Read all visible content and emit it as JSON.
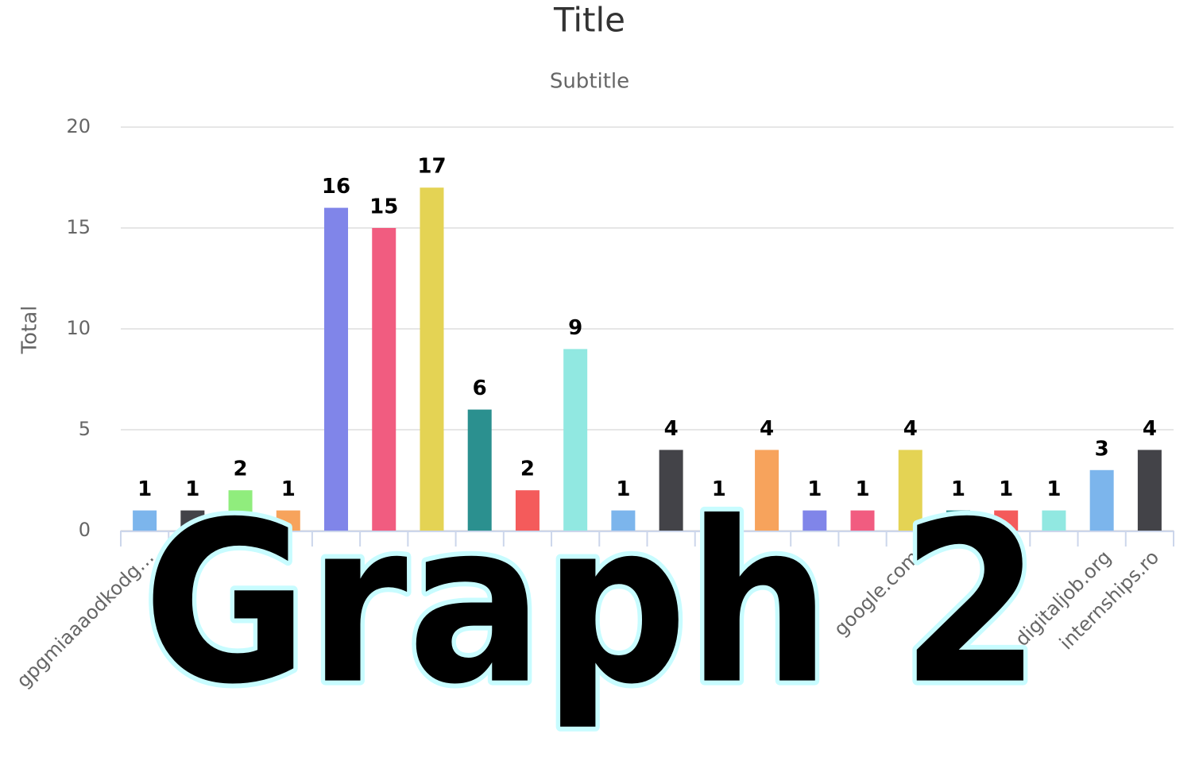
{
  "chart_data": {
    "type": "bar",
    "title": "Title",
    "subtitle": "Subtitle",
    "y_label": "Total",
    "categories": [
      "gpgmiaaaodkodg…",
      null,
      null,
      null,
      null,
      null,
      null,
      null,
      null,
      null,
      null,
      null,
      null,
      null,
      null,
      null,
      "google.com",
      null,
      null,
      null,
      "digitaljob.org",
      "internships.ro"
    ],
    "values": [
      1,
      1,
      2,
      1,
      16,
      15,
      17,
      6,
      2,
      9,
      1,
      4,
      1,
      4,
      1,
      1,
      4,
      1,
      1,
      1,
      3,
      4
    ],
    "colors": [
      "#7cb5ec",
      "#434348",
      "#90ed7d",
      "#f7a35c",
      "#8085e9",
      "#f15c80",
      "#e4d354",
      "#2b908f",
      "#f45b5b",
      "#91e8e1"
    ],
    "ylim": [
      0,
      20
    ],
    "yticks": [
      0,
      5,
      10,
      15,
      20
    ],
    "grid": true
  },
  "overlay_text": "Graph 2"
}
